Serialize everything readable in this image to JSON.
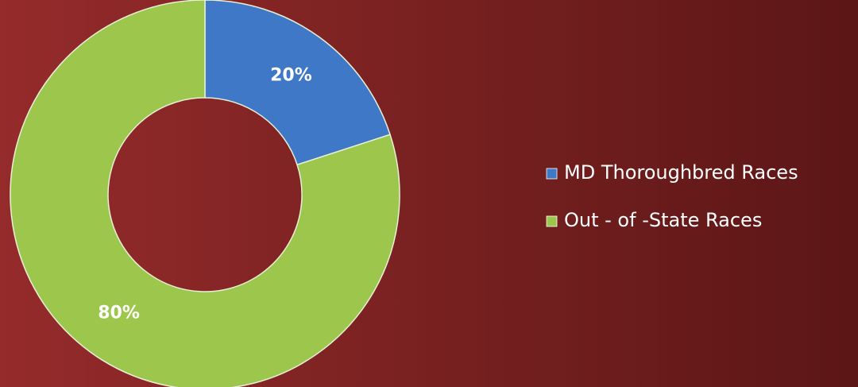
{
  "chart_data": {
    "type": "donut",
    "categories": [
      "MD Thoroughbred Races",
      "Out - of -State Races"
    ],
    "values": [
      20,
      80
    ],
    "value_labels": [
      "20%",
      "80%"
    ],
    "colors": [
      "#3f78c6",
      "#9cc64c"
    ]
  }
}
